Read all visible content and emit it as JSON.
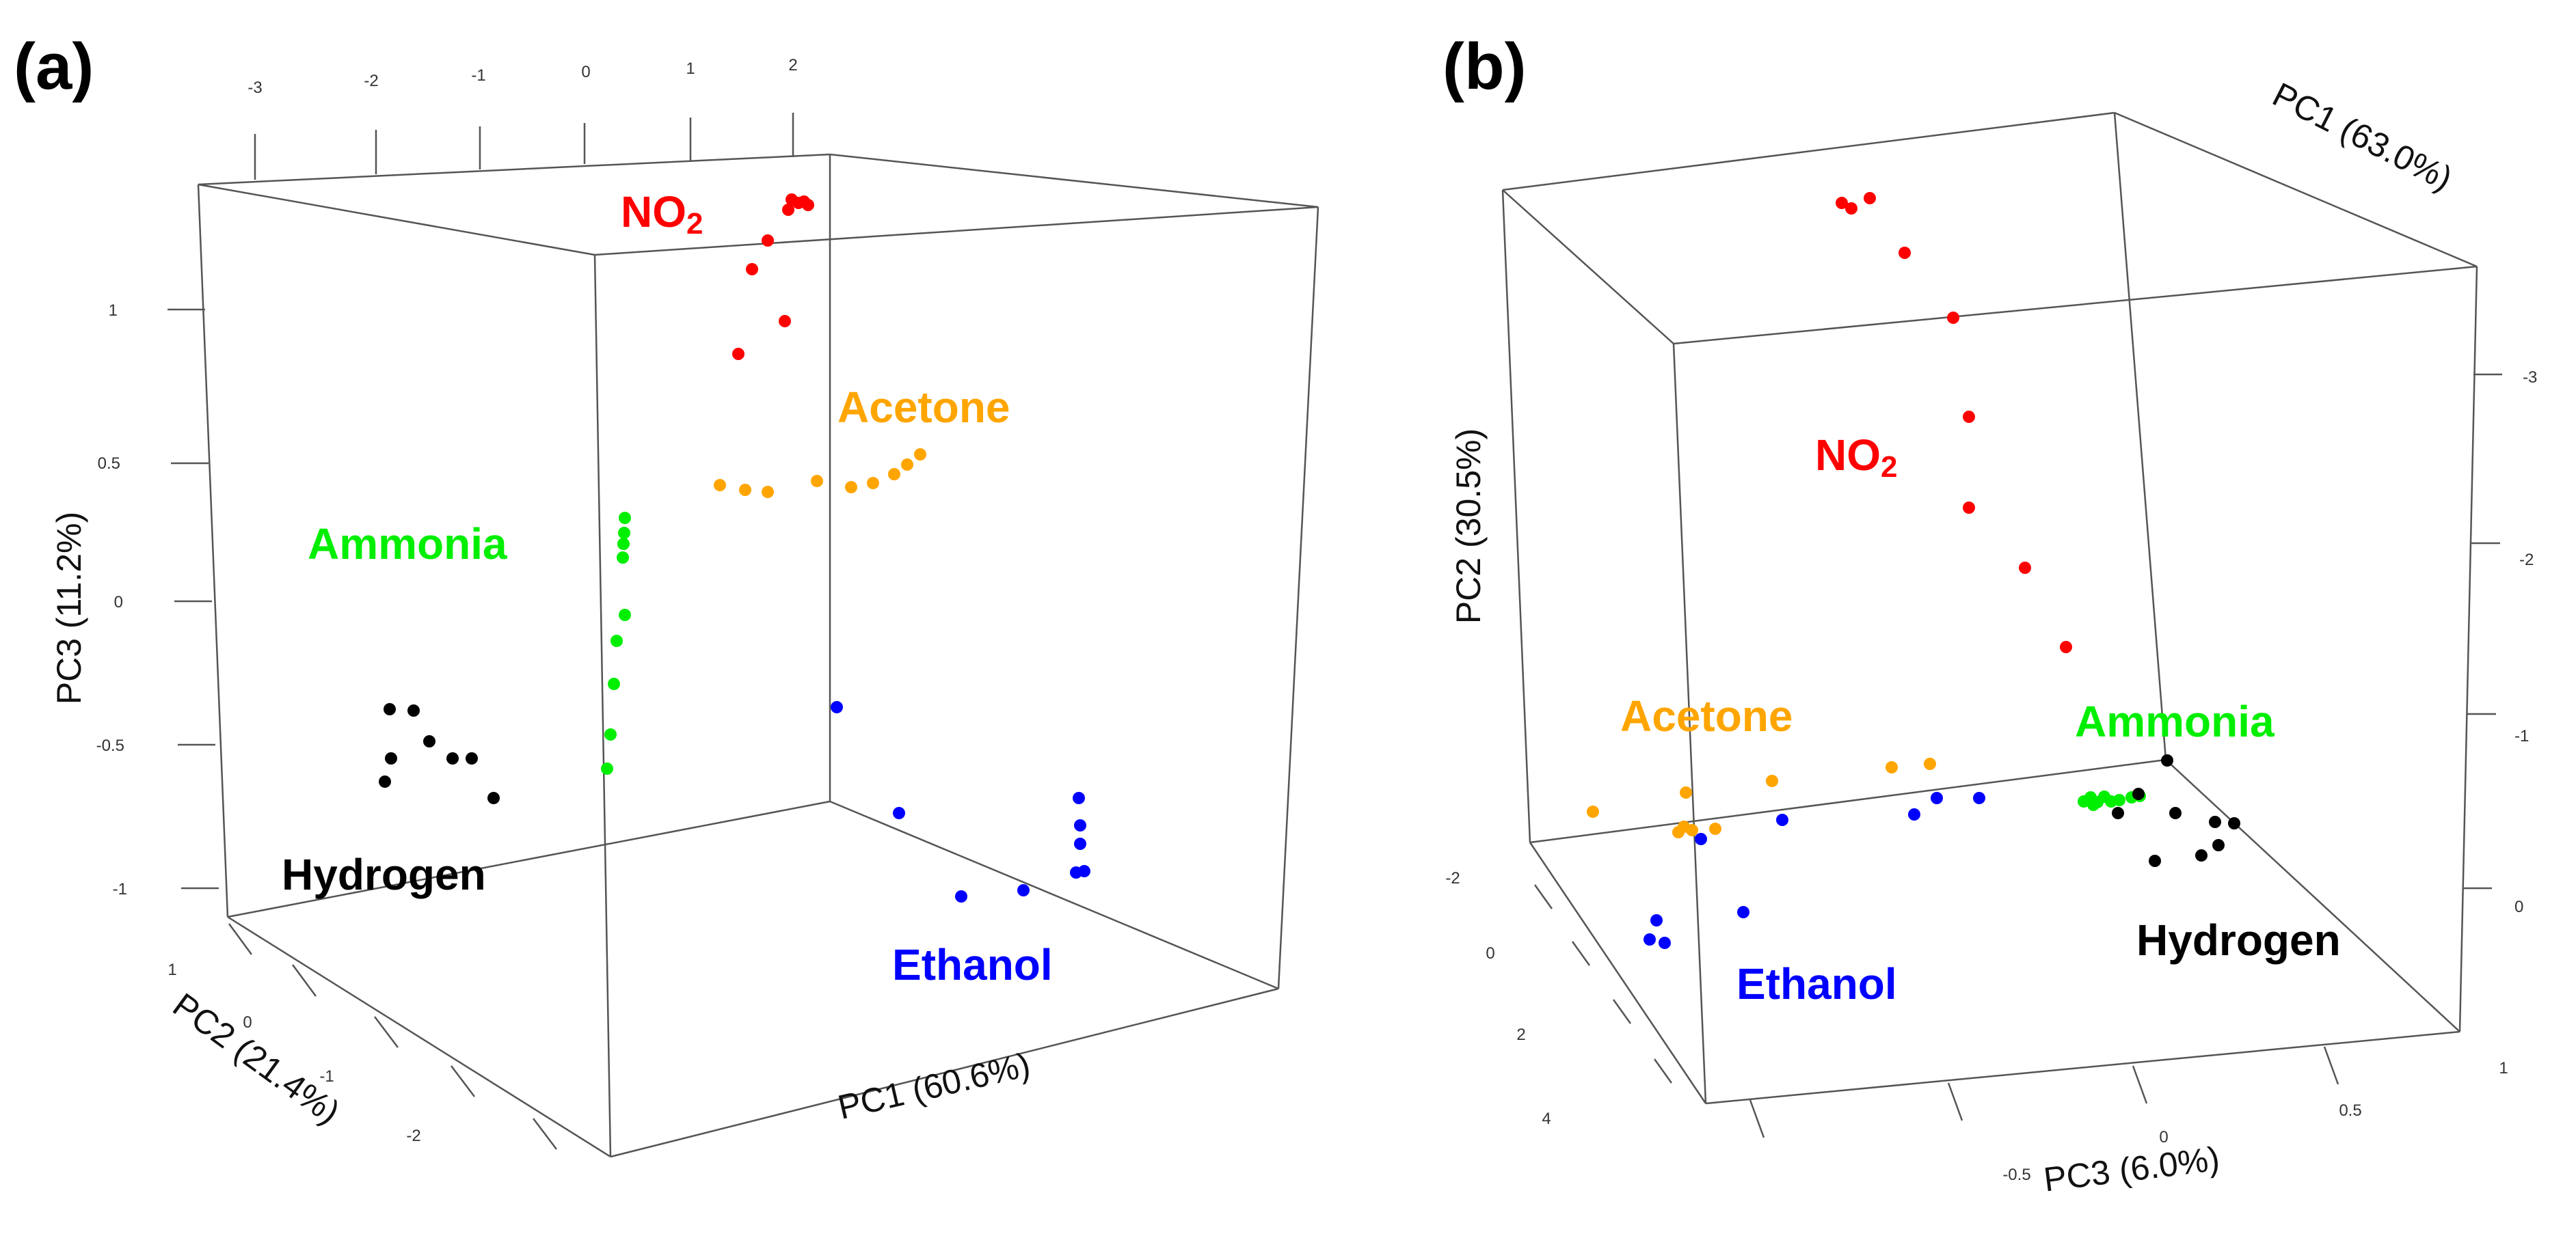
{
  "chart_data": [
    {
      "type": "scatter3d",
      "panel": "(a)",
      "axes": {
        "x": {
          "title": "PC1 (60.6%)",
          "ticks": [
            "-3",
            "-2",
            "-1",
            "0",
            "1",
            "2"
          ]
        },
        "y": {
          "title": "PC2 (21.4%)",
          "ticks": [
            "1",
            "0",
            "-1",
            "-2"
          ]
        },
        "z": {
          "title": "PC3 (11.2%)",
          "ticks": [
            "1",
            "0.5",
            "0",
            "-0.5",
            "-1"
          ]
        }
      },
      "series": [
        {
          "name": "NO2",
          "label_main": "NO",
          "label_sub": "2",
          "color": "#ff0000"
        },
        {
          "name": "Acetone",
          "label": "Acetone",
          "color": "#ffa500"
        },
        {
          "name": "Ammonia",
          "label": "Ammonia",
          "color": "#00ee00"
        },
        {
          "name": "Hydrogen",
          "label": "Hydrogen",
          "color": "#000000"
        },
        {
          "name": "Ethanol",
          "label": "Ethanol",
          "color": "#0000ff"
        }
      ]
    },
    {
      "type": "scatter3d",
      "panel": "(b)",
      "axes": {
        "x": {
          "title": "PC1 (63.0%)",
          "ticks": [
            "-3",
            "-2",
            "-1",
            "0"
          ]
        },
        "y": {
          "title": "PC2 (30.5%)",
          "ticks": [
            "-2",
            "0",
            "2",
            "4"
          ]
        },
        "z": {
          "title": "PC3 (6.0%)",
          "ticks": [
            "-0.5",
            "0",
            "0.5",
            "1"
          ]
        }
      },
      "series": [
        {
          "name": "NO2",
          "label_main": "NO",
          "label_sub": "2",
          "color": "#ff0000"
        },
        {
          "name": "Acetone",
          "label": "Acetone",
          "color": "#ffa500"
        },
        {
          "name": "Ammonia",
          "label": "Ammonia",
          "color": "#00ee00"
        },
        {
          "name": "Hydrogen",
          "label": "Hydrogen",
          "color": "#000000"
        },
        {
          "name": "Ethanol",
          "label": "Ethanol",
          "color": "#0000ff"
        }
      ]
    }
  ]
}
